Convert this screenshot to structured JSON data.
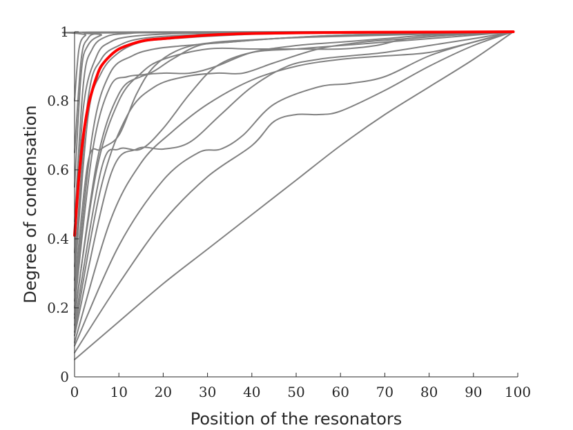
{
  "chart_data": {
    "type": "line",
    "title": "",
    "xlabel": "Position of the resonators",
    "ylabel": "Degree of condensation",
    "xlim": [
      0,
      100
    ],
    "ylim": [
      0,
      1
    ],
    "x_ticks": [
      "0",
      "10",
      "20",
      "30",
      "40",
      "50",
      "60",
      "70",
      "80",
      "90",
      "100"
    ],
    "y_ticks": [
      "0",
      "0.2",
      "0.4",
      "0.6",
      "0.8",
      "1"
    ],
    "grid": false,
    "legend": "none",
    "colors": {
      "background_curves": "#808080",
      "highlight": "#ff0000",
      "axes": "#262626"
    },
    "x_end": 99,
    "series": [
      {
        "color": "#808080",
        "points": [
          [
            0,
            0.05
          ],
          [
            10,
            0.16
          ],
          [
            20,
            0.27
          ],
          [
            30,
            0.37
          ],
          [
            40,
            0.47
          ],
          [
            50,
            0.57
          ],
          [
            60,
            0.67
          ],
          [
            70,
            0.76
          ],
          [
            80,
            0.84
          ],
          [
            90,
            0.92
          ],
          [
            99,
            1.0
          ]
        ]
      },
      {
        "color": "#808080",
        "points": [
          [
            0,
            0.07
          ],
          [
            10,
            0.27
          ],
          [
            20,
            0.45
          ],
          [
            30,
            0.58
          ],
          [
            40,
            0.67
          ],
          [
            45,
            0.74
          ],
          [
            50,
            0.76
          ],
          [
            55,
            0.76
          ],
          [
            60,
            0.77
          ],
          [
            70,
            0.83
          ],
          [
            80,
            0.9
          ],
          [
            90,
            0.96
          ],
          [
            99,
            1.0
          ]
        ]
      },
      {
        "color": "#808080",
        "points": [
          [
            0,
            0.09
          ],
          [
            10,
            0.38
          ],
          [
            20,
            0.57
          ],
          [
            28,
            0.65
          ],
          [
            33,
            0.66
          ],
          [
            38,
            0.7
          ],
          [
            45,
            0.79
          ],
          [
            55,
            0.84
          ],
          [
            62,
            0.85
          ],
          [
            70,
            0.87
          ],
          [
            80,
            0.93
          ],
          [
            90,
            0.97
          ],
          [
            99,
            1.0
          ]
        ]
      },
      {
        "color": "#808080",
        "points": [
          [
            0,
            0.1
          ],
          [
            8,
            0.45
          ],
          [
            15,
            0.62
          ],
          [
            22,
            0.71
          ],
          [
            30,
            0.79
          ],
          [
            40,
            0.86
          ],
          [
            50,
            0.9
          ],
          [
            60,
            0.92
          ],
          [
            70,
            0.93
          ],
          [
            80,
            0.94
          ],
          [
            90,
            0.97
          ],
          [
            99,
            1.0
          ]
        ]
      },
      {
        "color": "#808080",
        "points": [
          [
            0,
            0.12
          ],
          [
            8,
            0.58
          ],
          [
            14,
            0.66
          ],
          [
            20,
            0.66
          ],
          [
            26,
            0.68
          ],
          [
            33,
            0.76
          ],
          [
            40,
            0.84
          ],
          [
            48,
            0.9
          ],
          [
            55,
            0.92
          ],
          [
            62,
            0.93
          ],
          [
            70,
            0.94
          ],
          [
            80,
            0.96
          ],
          [
            90,
            0.98
          ],
          [
            99,
            1.0
          ]
        ]
      },
      {
        "color": "#808080",
        "points": [
          [
            0,
            0.13
          ],
          [
            6,
            0.55
          ],
          [
            12,
            0.76
          ],
          [
            18,
            0.84
          ],
          [
            25,
            0.87
          ],
          [
            32,
            0.88
          ],
          [
            38,
            0.88
          ],
          [
            45,
            0.91
          ],
          [
            55,
            0.95
          ],
          [
            65,
            0.97
          ],
          [
            75,
            0.98
          ],
          [
            85,
            0.99
          ],
          [
            99,
            1.0
          ]
        ]
      },
      {
        "color": "#808080",
        "points": [
          [
            0,
            0.15
          ],
          [
            6,
            0.6
          ],
          [
            10,
            0.66
          ],
          [
            15,
            0.66
          ],
          [
            20,
            0.72
          ],
          [
            26,
            0.82
          ],
          [
            32,
            0.9
          ],
          [
            40,
            0.94
          ],
          [
            50,
            0.95
          ],
          [
            60,
            0.96
          ],
          [
            70,
            0.97
          ],
          [
            80,
            0.98
          ],
          [
            90,
            0.99
          ],
          [
            99,
            1.0
          ]
        ]
      },
      {
        "color": "#808080",
        "points": [
          [
            0,
            0.17
          ],
          [
            5,
            0.62
          ],
          [
            10,
            0.82
          ],
          [
            15,
            0.87
          ],
          [
            20,
            0.88
          ],
          [
            26,
            0.88
          ],
          [
            32,
            0.9
          ],
          [
            40,
            0.94
          ],
          [
            50,
            0.96
          ],
          [
            60,
            0.97
          ],
          [
            70,
            0.98
          ],
          [
            80,
            0.99
          ],
          [
            99,
            1.0
          ]
        ]
      },
      {
        "color": "#808080",
        "points": [
          [
            0,
            0.18
          ],
          [
            5,
            0.6
          ],
          [
            10,
            0.8
          ],
          [
            15,
            0.88
          ],
          [
            20,
            0.92
          ],
          [
            30,
            0.95
          ],
          [
            40,
            0.95
          ],
          [
            50,
            0.95
          ],
          [
            60,
            0.95
          ],
          [
            68,
            0.96
          ],
          [
            75,
            0.98
          ],
          [
            85,
            0.99
          ],
          [
            99,
            1.0
          ]
        ]
      },
      {
        "color": "#808080",
        "points": [
          [
            0,
            0.2
          ],
          [
            4,
            0.65
          ],
          [
            8,
            0.84
          ],
          [
            12,
            0.87
          ],
          [
            17,
            0.88
          ],
          [
            22,
            0.92
          ],
          [
            28,
            0.96
          ],
          [
            35,
            0.97
          ],
          [
            45,
            0.98
          ],
          [
            60,
            0.99
          ],
          [
            80,
            0.995
          ],
          [
            99,
            1.0
          ]
        ]
      },
      {
        "color": "#808080",
        "points": [
          [
            0,
            0.22
          ],
          [
            4,
            0.7
          ],
          [
            8,
            0.88
          ],
          [
            13,
            0.93
          ],
          [
            18,
            0.95
          ],
          [
            25,
            0.96
          ],
          [
            35,
            0.97
          ],
          [
            45,
            0.98
          ],
          [
            55,
            0.985
          ],
          [
            70,
            0.99
          ],
          [
            85,
            0.995
          ],
          [
            99,
            1.0
          ]
        ]
      },
      {
        "color": "#808080",
        "points": [
          [
            0,
            0.25
          ],
          [
            3,
            0.62
          ],
          [
            6,
            0.66
          ],
          [
            10,
            0.7
          ],
          [
            14,
            0.82
          ],
          [
            18,
            0.9
          ],
          [
            24,
            0.95
          ],
          [
            32,
            0.97
          ],
          [
            45,
            0.98
          ],
          [
            60,
            0.99
          ],
          [
            80,
            0.995
          ],
          [
            99,
            1.0
          ]
        ]
      },
      {
        "color": "#808080",
        "points": [
          [
            0,
            0.28
          ],
          [
            3,
            0.75
          ],
          [
            6,
            0.88
          ],
          [
            10,
            0.94
          ],
          [
            15,
            0.97
          ],
          [
            22,
            0.98
          ],
          [
            35,
            0.99
          ],
          [
            50,
            0.995
          ],
          [
            99,
            1.0
          ]
        ]
      },
      {
        "color": "#808080",
        "points": [
          [
            0,
            0.32
          ],
          [
            3,
            0.8
          ],
          [
            6,
            0.92
          ],
          [
            10,
            0.96
          ],
          [
            15,
            0.98
          ],
          [
            25,
            0.99
          ],
          [
            40,
            0.995
          ],
          [
            99,
            1.0
          ]
        ]
      },
      {
        "color": "#808080",
        "points": [
          [
            0,
            0.36
          ],
          [
            2,
            0.78
          ],
          [
            5,
            0.93
          ],
          [
            8,
            0.97
          ],
          [
            12,
            0.985
          ],
          [
            20,
            0.993
          ],
          [
            35,
            0.997
          ],
          [
            99,
            1.0
          ]
        ]
      },
      {
        "color": "#808080",
        "points": [
          [
            0,
            0.45
          ],
          [
            2,
            0.85
          ],
          [
            4,
            0.95
          ],
          [
            7,
            0.985
          ],
          [
            12,
            0.995
          ],
          [
            25,
            0.998
          ],
          [
            99,
            1.0
          ]
        ]
      },
      {
        "color": "#808080",
        "points": [
          [
            0,
            0.55
          ],
          [
            1.5,
            0.88
          ],
          [
            3,
            0.96
          ],
          [
            6,
            0.99
          ],
          [
            10,
            0.997
          ],
          [
            99,
            1.0
          ]
        ]
      },
      {
        "color": "#808080",
        "points": [
          [
            0,
            0.65
          ],
          [
            1.5,
            0.92
          ],
          [
            3,
            0.98
          ],
          [
            5,
            0.995
          ],
          [
            10,
            0.999
          ],
          [
            99,
            1.0
          ]
        ]
      },
      {
        "color": "#808080",
        "points": [
          [
            0,
            0.8
          ],
          [
            1,
            0.95
          ],
          [
            2.5,
            0.99
          ],
          [
            5,
            0.999
          ],
          [
            99,
            1.0
          ]
        ]
      },
      {
        "color": "#ff0000",
        "highlight": true,
        "points": [
          [
            0,
            0.41
          ],
          [
            1,
            0.58
          ],
          [
            2,
            0.7
          ],
          [
            3,
            0.78
          ],
          [
            4,
            0.83
          ],
          [
            5,
            0.87
          ],
          [
            6,
            0.9
          ],
          [
            8,
            0.93
          ],
          [
            10,
            0.95
          ],
          [
            13,
            0.965
          ],
          [
            16,
            0.975
          ],
          [
            20,
            0.98
          ],
          [
            30,
            0.99
          ],
          [
            40,
            0.995
          ],
          [
            60,
            0.998
          ],
          [
            80,
            0.999
          ],
          [
            99,
            1.0
          ]
        ]
      }
    ]
  }
}
